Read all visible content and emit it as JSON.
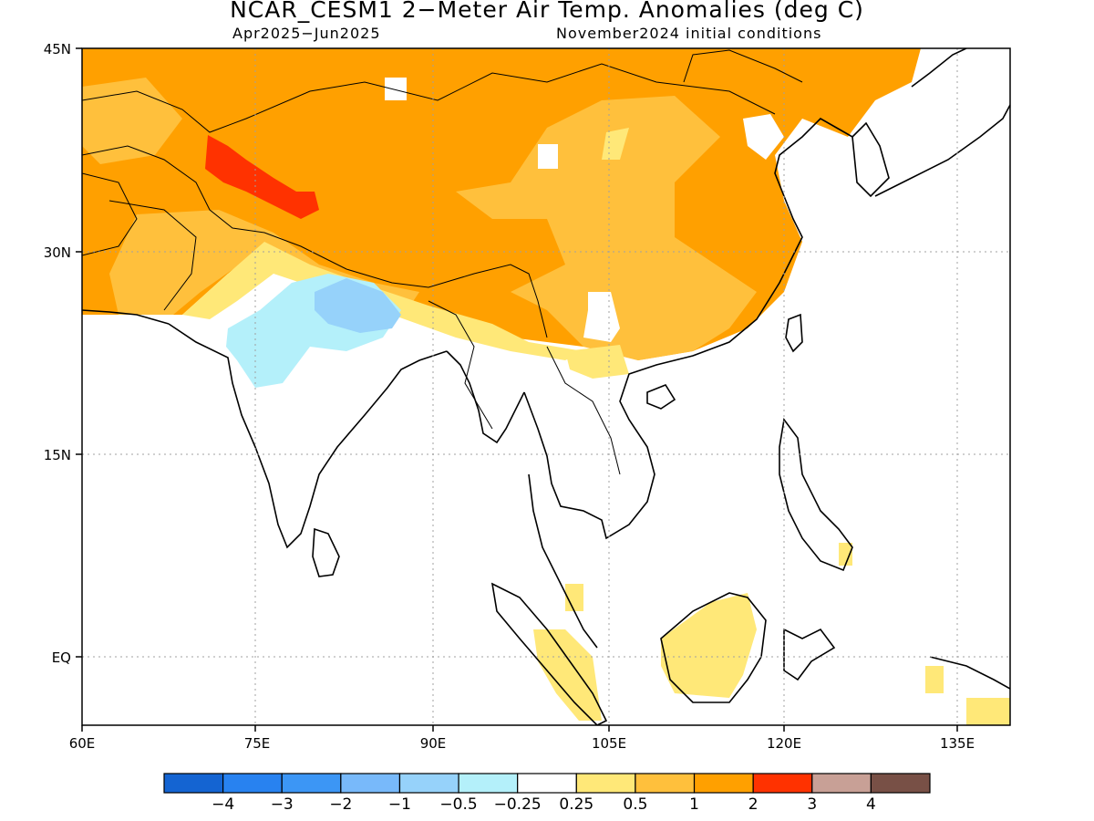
{
  "header": {
    "title": "NCAR_CESM1 2−Meter Air Temp. Anomalies (deg C)",
    "period": "Apr2025−Jun2025",
    "init": "November2024 initial conditions"
  },
  "map": {
    "lon_range": [
      60,
      140
    ],
    "lat_range": [
      -6,
      45
    ],
    "lon_ticks": [
      "60E",
      "75E",
      "90E",
      "105E",
      "120E",
      "135E"
    ],
    "lat_ticks": [
      "45N",
      "30N",
      "15N",
      "EQ"
    ],
    "grid": "dotted"
  },
  "legend": {
    "labels": [
      "−4",
      "−3",
      "−2",
      "−1",
      "−0.5",
      "−0.25",
      "0.25",
      "0.5",
      "1",
      "2",
      "3",
      "4"
    ],
    "colors": [
      "#1464d2",
      "#2882f0",
      "#3c96f5",
      "#78b9fa",
      "#96d2fa",
      "#b4f0fa",
      "#ffffff",
      "#ffe878",
      "#ffc03c",
      "#ffa000",
      "#ff3200",
      "#c8a096",
      "#785046"
    ]
  },
  "palette": {
    "light_yellow": "#ffe878",
    "light_orange": "#ffc03c",
    "orange": "#ffa000",
    "red": "#ff3200",
    "light_blue": "#b4f0fa",
    "blue": "#96d2fa"
  }
}
